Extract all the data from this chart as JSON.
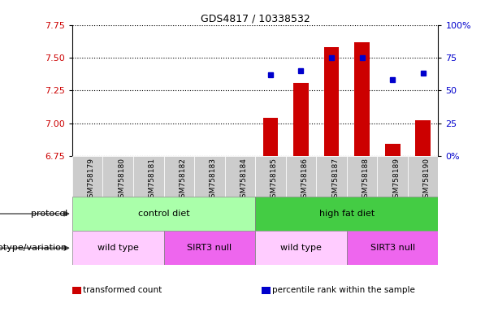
{
  "title": "GDS4817 / 10338532",
  "samples": [
    "GSM758179",
    "GSM758180",
    "GSM758181",
    "GSM758182",
    "GSM758183",
    "GSM758184",
    "GSM758185",
    "GSM758186",
    "GSM758187",
    "GSM758188",
    "GSM758189",
    "GSM758190"
  ],
  "bar_values": [
    6.75,
    6.75,
    6.75,
    6.75,
    6.75,
    6.75,
    7.04,
    7.31,
    7.58,
    7.62,
    6.84,
    7.02
  ],
  "bar_base": 6.75,
  "percentile_values": [
    null,
    null,
    null,
    null,
    null,
    null,
    62,
    65,
    75,
    75,
    58,
    63
  ],
  "ylim_left": [
    6.75,
    7.75
  ],
  "ylim_right": [
    0,
    100
  ],
  "yticks_left": [
    6.75,
    7.0,
    7.25,
    7.5,
    7.75
  ],
  "yticks_right": [
    0,
    25,
    50,
    75,
    100
  ],
  "ytick_right_labels": [
    "0%",
    "25",
    "50",
    "75",
    "100%"
  ],
  "bar_color": "#cc0000",
  "percentile_color": "#0000cc",
  "protocol_label": "protocol",
  "genotype_label": "genotype/variation",
  "protocol_groups": [
    {
      "label": "control diet",
      "start": 0,
      "end": 5,
      "color": "#aaeea a"
    },
    {
      "label": "high fat diet",
      "start": 6,
      "end": 11,
      "color": "#44cc44"
    }
  ],
  "genotype_groups": [
    {
      "label": "wild type",
      "start": 0,
      "end": 2,
      "color": "#ffccff"
    },
    {
      "label": "SIRT3 null",
      "start": 3,
      "end": 5,
      "color": "#ee66ee"
    },
    {
      "label": "wild type",
      "start": 6,
      "end": 8,
      "color": "#ffccff"
    },
    {
      "label": "SIRT3 null",
      "start": 9,
      "end": 11,
      "color": "#ee66ee"
    }
  ],
  "legend_items": [
    {
      "label": "transformed count",
      "color": "#cc0000"
    },
    {
      "label": "percentile rank within the sample",
      "color": "#0000cc"
    }
  ],
  "background_color": "#ffffff",
  "tick_label_color_left": "#cc0000",
  "tick_label_color_right": "#0000cc",
  "sample_bg_color": "#cccccc",
  "protocol_light_color": "#aaffaa",
  "protocol_dark_color": "#44cc44",
  "genotype_light_color": "#ffccff",
  "genotype_dark_color": "#ee66ee"
}
